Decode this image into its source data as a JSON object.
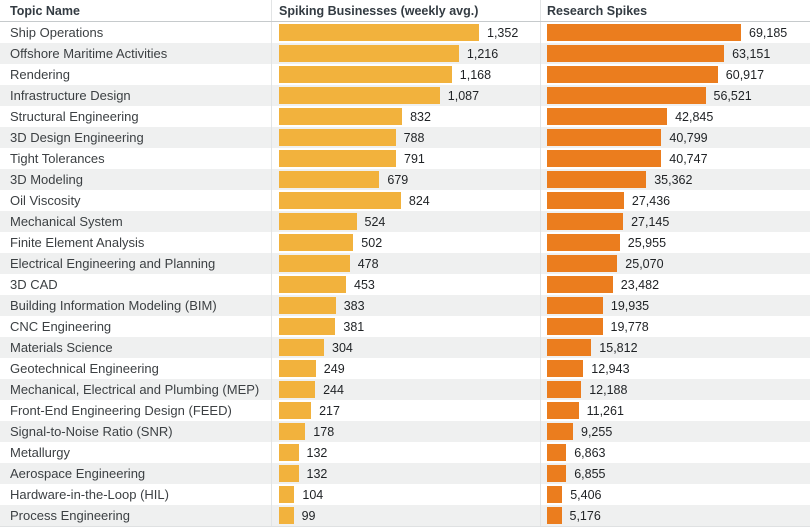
{
  "colors": {
    "spiking_businesses_bar": "#F2B23D",
    "research_spikes_bar": "#EB7D1E",
    "row_stripe": "#EFF0F0",
    "header_text": "#333B42"
  },
  "chart_data": {
    "type": "bar",
    "orientation": "horizontal",
    "title": "",
    "columns": [
      "Topic Name",
      "Spiking Businesses (weekly avg.)",
      "Research Spikes"
    ],
    "categories": [
      "Ship Operations",
      "Offshore Maritime Activities",
      "Rendering",
      "Infrastructure Design",
      "Structural Engineering",
      "3D Design Engineering",
      "Tight Tolerances",
      "3D Modeling",
      "Oil Viscosity",
      "Mechanical System",
      "Finite Element Analysis",
      "Electrical Engineering and Planning",
      "3D CAD",
      "Building Information Modeling (BIM)",
      "CNC Engineering",
      "Materials Science",
      "Geotechnical Engineering",
      "Mechanical, Electrical and Plumbing (MEP)",
      "Front-End Engineering Design (FEED)",
      "Signal-to-Noise Ratio (SNR)",
      "Metallurgy",
      "Aerospace Engineering",
      "Hardware-in-the-Loop (HIL)",
      "Process Engineering"
    ],
    "series": [
      {
        "name": "Spiking Businesses (weekly avg.)",
        "color": "#F2B23D",
        "values": [
          1352,
          1216,
          1168,
          1087,
          832,
          788,
          791,
          679,
          824,
          524,
          502,
          478,
          453,
          383,
          381,
          304,
          249,
          244,
          217,
          178,
          132,
          132,
          104,
          99
        ],
        "labels": [
          "1,352",
          "1,216",
          "1,168",
          "1,087",
          "832",
          "788",
          "791",
          "679",
          "824",
          "524",
          "502",
          "478",
          "453",
          "383",
          "381",
          "304",
          "249",
          "244",
          "217",
          "178",
          "132",
          "132",
          "104",
          "99"
        ]
      },
      {
        "name": "Research Spikes",
        "color": "#EB7D1E",
        "values": [
          69185,
          63151,
          60917,
          56521,
          42845,
          40799,
          40747,
          35362,
          27436,
          27145,
          25955,
          25070,
          23482,
          19935,
          19778,
          15812,
          12943,
          12188,
          11261,
          9255,
          6863,
          6855,
          5406,
          5176
        ],
        "labels": [
          "69,185",
          "63,151",
          "60,917",
          "56,521",
          "42,845",
          "40,799",
          "40,747",
          "35,362",
          "27,436",
          "27,145",
          "25,955",
          "25,070",
          "23,482",
          "19,935",
          "19,778",
          "15,812",
          "12,943",
          "12,188",
          "11,261",
          "9,255",
          "6,863",
          "6,855",
          "5,406",
          "5,176"
        ]
      }
    ],
    "legend": "none",
    "grid": false,
    "row_striping": true
  }
}
